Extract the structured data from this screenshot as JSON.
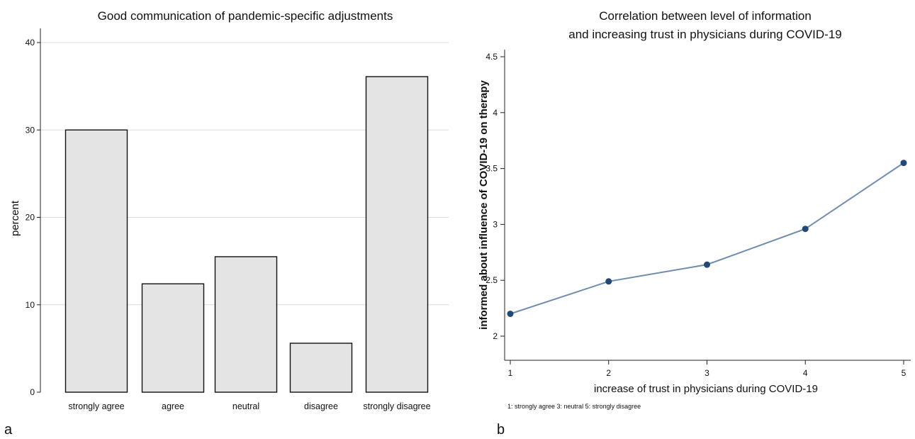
{
  "chart_data": [
    {
      "type": "bar",
      "panel_label": "a",
      "title": "Good communication of pandemic-specific adjustments",
      "ylabel": "percent",
      "xlabel": "",
      "categories": [
        "strongly agree",
        "agree",
        "neutral",
        "disagree",
        "strongly disagree"
      ],
      "values": [
        30.0,
        12.4,
        15.5,
        5.6,
        36.1
      ],
      "ylim": [
        0,
        40
      ],
      "yticks": [
        0,
        10,
        20,
        30,
        40
      ],
      "grid": true,
      "bar_color": "#e4e4e4"
    },
    {
      "type": "line",
      "panel_label": "b",
      "title": [
        "Correlation between level of information",
        "and increasing trust in physicians during COVID-19"
      ],
      "xlabel": "increase of trust in physicians during COVID-19",
      "ylabel": "informed about influence of COVID-19 on therapy",
      "note": "1: strongly agree 3: neutral 5: strongly disagree",
      "x": [
        1,
        2,
        3,
        4,
        5
      ],
      "y": [
        2.2,
        2.49,
        2.64,
        2.96,
        3.55
      ],
      "xticks": [
        1,
        2,
        3,
        4,
        5
      ],
      "yticks": [
        2,
        2.5,
        3,
        3.5,
        4,
        4.5
      ],
      "ytick_labels": [
        "2",
        "2.5",
        "3",
        "3.5",
        "4",
        "4.5"
      ],
      "xlim": [
        1,
        5
      ],
      "ylim": [
        1.75,
        4.55
      ],
      "grid": false,
      "line_color": "#6f8eae",
      "marker_color": "#1f4a78"
    }
  ]
}
